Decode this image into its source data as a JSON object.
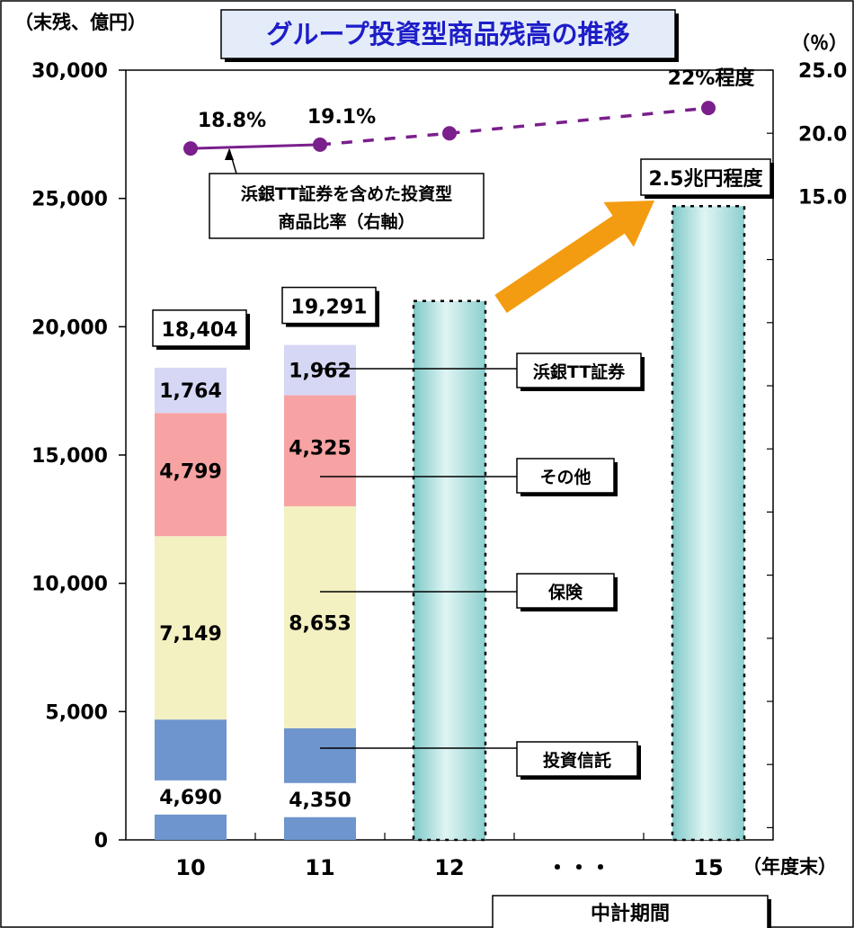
{
  "chart_data": {
    "type": "bar",
    "title": "グループ投資型商品残高の推移",
    "left_unit": "（末残、億円）",
    "right_unit": "（％）",
    "x_unit": "（年度末）",
    "categories": [
      "10",
      "11",
      "12",
      "・・・",
      "15"
    ],
    "ylim": [
      0,
      30000
    ],
    "y_ticks": [
      "0",
      "5,000",
      "10,000",
      "15,000",
      "20,000",
      "25,000",
      "30,000"
    ],
    "y2_ticks": [
      "15.0",
      "20.0",
      "25.0"
    ],
    "series": [
      {
        "name": "投資信託",
        "values": [
          4690,
          4350,
          null,
          null,
          null
        ],
        "labels": [
          "4,690",
          "4,350"
        ],
        "color": "#6e95cd"
      },
      {
        "name": "保険",
        "values": [
          7149,
          8653,
          null,
          null,
          null
        ],
        "labels": [
          "7,149",
          "8,653"
        ],
        "color": "#f3f0c2"
      },
      {
        "name": "その他",
        "values": [
          4799,
          4325,
          null,
          null,
          null
        ],
        "labels": [
          "4,799",
          "4,325"
        ],
        "color": "#f7a3a3"
      },
      {
        "name": "浜銀TT証券",
        "values": [
          1764,
          1962,
          null,
          null,
          null
        ],
        "labels": [
          "1,764",
          "1,962"
        ],
        "color": "#d6d6f5"
      }
    ],
    "totals": [
      "18,404",
      "19,291"
    ],
    "plan_bars": [
      {
        "category": "12",
        "value": 21000
      },
      {
        "category": "15",
        "value": 24700,
        "label": "2.5兆円程度"
      }
    ],
    "ratio_line": {
      "name": "浜銀TT証券を含めた投資型商品比率（右軸）",
      "note_line1": "浜銀TT証券を含めた投資型",
      "note_line2": "商品比率（右軸）",
      "actual": [
        {
          "x": "10",
          "y": 18.8,
          "label": "18.8%"
        },
        {
          "x": "11",
          "y": 19.1,
          "label": "19.1%"
        }
      ],
      "plan": [
        {
          "x": "12",
          "y": 20.0
        },
        {
          "x": "15",
          "y": 22.0,
          "label": "22%程度"
        }
      ],
      "color": "#7a1f8c"
    },
    "period_label": "中計期間",
    "accent_color": "#f39c12"
  }
}
